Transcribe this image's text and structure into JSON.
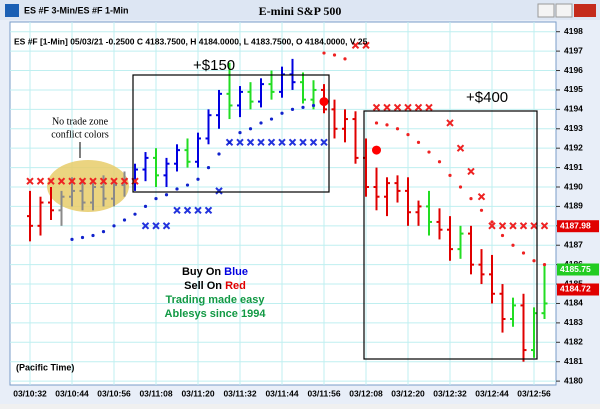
{
  "window_title": "ES #F 3-Min/ES #F 1-Min",
  "chart_data": {
    "type": "ohlc",
    "title": "E-mini S&P 500",
    "subtitle": "ES #F [1-Min] 05/03/21 -0.2500 C 4183.7500, H 4184.0000, L 4183.7500, O 4184.0000, V 25",
    "timezone_note": "(Pacific Time)",
    "categories": [
      "03/10:32",
      null,
      null,
      null,
      "03/10:44",
      null,
      null,
      null,
      "03/10:56",
      null,
      null,
      null,
      "03/11:08",
      null,
      null,
      null,
      "03/11:20",
      null,
      null,
      null,
      "03/11:32",
      null,
      null,
      null,
      "03/11:44",
      null,
      null,
      null,
      "03/11:56",
      null,
      null,
      null,
      "03/12:08",
      null,
      null,
      null,
      "03/12:20",
      null,
      null,
      null,
      "03/12:32",
      null,
      null,
      null,
      "03/12:44",
      null,
      null,
      null,
      "03/12:56",
      null
    ],
    "open": [
      4188.5,
      4188.0,
      4189.2,
      4188.8,
      4189.5,
      4189.8,
      4189.2,
      4190.0,
      4189.4,
      4190.1,
      4190.4,
      4190.9,
      4191.5,
      4190.6,
      4191.2,
      4191.9,
      4191.3,
      4192.5,
      4193.7,
      4194.8,
      4194.2,
      4194.9,
      4194.4,
      4195.3,
      4194.9,
      4195.8,
      4195.4,
      4194.5,
      4195.0,
      4194.0,
      4193.0,
      4193.5,
      4191.5,
      4190.0,
      4189.5,
      4190.2,
      4189.8,
      4188.7,
      4189.0,
      4188.2,
      4187.8,
      4186.8,
      4187.6,
      4186.0,
      4185.5,
      4184.5,
      4183.2,
      4183.9,
      4181.6,
      4183.5
    ],
    "high": [
      4189.8,
      4189.5,
      4190.0,
      4189.8,
      4190.5,
      4190.4,
      4190.2,
      4190.6,
      4190.3,
      4190.8,
      4191.2,
      4191.8,
      4192.0,
      4191.5,
      4192.2,
      4192.5,
      4192.8,
      4194.0,
      4195.0,
      4196.4,
      4195.2,
      4195.4,
      4195.6,
      4196.0,
      4196.2,
      4196.6,
      4195.9,
      4195.5,
      4195.3,
      4194.5,
      4194.0,
      4193.9,
      4192.5,
      4191.0,
      4190.5,
      4190.6,
      4190.5,
      4189.3,
      4189.8,
      4188.9,
      4188.5,
      4188.0,
      4188.0,
      4186.8,
      4186.5,
      4185.0,
      4184.3,
      4184.5,
      4183.8,
      4186.0
    ],
    "low": [
      4187.2,
      4187.5,
      4188.3,
      4188.0,
      4189.0,
      4188.8,
      4188.8,
      4189.0,
      4189.0,
      4189.5,
      4189.8,
      4190.3,
      4190.0,
      4190.0,
      4190.8,
      4191.0,
      4191.0,
      4192.2,
      4193.0,
      4193.5,
      4193.6,
      4194.0,
      4194.1,
      4194.5,
      4194.6,
      4195.0,
      4194.3,
      4194.0,
      4193.8,
      4192.5,
      4192.3,
      4191.2,
      4189.5,
      4188.8,
      4188.5,
      4189.2,
      4188.0,
      4188.0,
      4187.5,
      4187.3,
      4186.2,
      4186.3,
      4185.5,
      4185.0,
      4184.0,
      4182.5,
      4182.8,
      4181.0,
      4181.2,
      4183.2
    ],
    "close": [
      4188.0,
      4189.2,
      4188.8,
      4189.5,
      4189.8,
      4189.2,
      4190.0,
      4189.4,
      4190.1,
      4190.4,
      4190.9,
      4191.5,
      4190.6,
      4191.2,
      4191.9,
      4191.3,
      4192.5,
      4193.7,
      4194.8,
      4194.2,
      4194.9,
      4194.4,
      4195.3,
      4194.9,
      4195.8,
      4195.4,
      4194.5,
      4195.0,
      4194.0,
      4193.0,
      4193.5,
      4191.5,
      4190.0,
      4189.5,
      4190.2,
      4189.8,
      4188.7,
      4189.0,
      4188.2,
      4187.8,
      4186.8,
      4187.6,
      4186.0,
      4185.5,
      4184.5,
      4183.2,
      4183.9,
      4181.6,
      4183.5,
      4184.0
    ],
    "bar_colors": [
      "#e00000",
      "#e00000",
      "#e00000",
      "#8a8a8a",
      "#8a8a8a",
      "#8a8a8a",
      "#8a8a8a",
      "#8a8a8a",
      "#8a8a8a",
      "#8a8a8a",
      "#0000e0",
      "#0000e0",
      "#22dd22",
      "#0000e0",
      "#0000e0",
      "#22dd22",
      "#0000e0",
      "#0000e0",
      "#0000e0",
      "#22dd22",
      "#0000e0",
      "#22dd22",
      "#0000e0",
      "#22dd22",
      "#0000e0",
      "#0000e0",
      "#22dd22",
      "#22dd22",
      "#e00000",
      "#e00000",
      "#e00000",
      "#e00000",
      "#e00000",
      "#e00000",
      "#e00000",
      "#e00000",
      "#e00000",
      "#e00000",
      "#22dd22",
      "#e00000",
      "#e00000",
      "#22dd22",
      "#e00000",
      "#e00000",
      "#e00000",
      "#e00000",
      "#22dd22",
      "#e00000",
      "#22dd22",
      "#22dd22"
    ],
    "markers": [
      {
        "color": "#ee2222",
        "shape": "x",
        "values": [
          4190.3,
          4190.3,
          4190.3,
          4190.3,
          4190.3,
          4190.3,
          4190.3,
          4190.3,
          4190.3,
          4190.3,
          4190.3,
          null,
          null,
          null,
          null,
          null,
          null,
          null,
          null,
          null,
          null,
          null,
          null,
          null,
          null,
          null,
          null,
          null,
          null,
          null,
          null,
          4197.3,
          4197.3,
          4194.1,
          4194.1,
          4194.1,
          4194.1,
          4194.1,
          4194.1,
          null,
          4193.3,
          4192.0,
          4190.8,
          4189.5,
          4188.0,
          4188.0,
          4188.0,
          4188.0,
          4188.0,
          4188.0
        ]
      },
      {
        "color": "#2233dd",
        "shape": "x",
        "values": [
          null,
          null,
          null,
          null,
          null,
          null,
          null,
          null,
          null,
          null,
          null,
          4188.0,
          4188.0,
          4188.0,
          4188.8,
          4188.8,
          4188.8,
          4188.8,
          4189.8,
          4192.3,
          4192.3,
          4192.3,
          4192.3,
          4192.3,
          4192.3,
          4192.3,
          4192.3,
          4192.3,
          4192.3,
          null,
          null,
          null,
          null,
          null,
          null,
          null,
          null,
          null,
          null,
          null,
          null,
          null,
          null,
          null,
          null,
          null,
          null,
          null,
          null,
          null
        ]
      },
      {
        "color": "#1122cc",
        "shape": "dot",
        "values": [
          null,
          null,
          null,
          null,
          4187.3,
          4187.4,
          4187.5,
          4187.7,
          4188.0,
          4188.3,
          4188.6,
          4189.0,
          4189.4,
          4189.6,
          4189.9,
          4190.1,
          4190.4,
          4191.0,
          4191.7,
          4192.3,
          4192.8,
          4193.0,
          4193.3,
          4193.5,
          4193.8,
          4194.0,
          4194.1,
          4194.2,
          null,
          null,
          null,
          null,
          null,
          null,
          null,
          null,
          null,
          null,
          null,
          null,
          null,
          null,
          null,
          null,
          null,
          null,
          null,
          null,
          null,
          null
        ]
      },
      {
        "color": "#ee2222",
        "shape": "dot",
        "values": [
          null,
          null,
          null,
          null,
          null,
          null,
          null,
          null,
          null,
          null,
          null,
          null,
          null,
          null,
          null,
          null,
          null,
          null,
          null,
          null,
          null,
          null,
          null,
          null,
          null,
          null,
          null,
          null,
          4196.9,
          4196.8,
          4196.6,
          null,
          null,
          4193.3,
          4193.2,
          4193.0,
          4192.7,
          4192.3,
          4191.8,
          4191.3,
          4190.6,
          4190.0,
          4189.4,
          4188.8,
          4188.2,
          4187.5,
          4187.0,
          4186.6,
          4186.2,
          4186.0
        ]
      },
      {
        "color": "#ff0000",
        "shape": "signal",
        "values": [
          null,
          null,
          null,
          null,
          null,
          null,
          null,
          null,
          null,
          null,
          null,
          null,
          null,
          null,
          null,
          null,
          null,
          null,
          null,
          null,
          null,
          null,
          null,
          null,
          null,
          null,
          null,
          null,
          4194.4,
          null,
          null,
          null,
          null,
          4191.9,
          null,
          null,
          null,
          null,
          null,
          null,
          null,
          null,
          null,
          null,
          null,
          null,
          null,
          null,
          null,
          null
        ]
      }
    ],
    "price_labels": [
      {
        "value": 4187.98,
        "label": "4187.98",
        "color": "#e00000"
      },
      {
        "value": 4185.75,
        "label": "4185.75",
        "color": "#22cc22"
      },
      {
        "value": 4184.72,
        "label": "4184.72",
        "color": "#e00000"
      }
    ],
    "ylim": [
      4179.8,
      4198.5
    ],
    "yticks": [
      4180,
      4181,
      4182,
      4183,
      4184,
      4185,
      4186,
      4187,
      4188,
      4189,
      4190,
      4191,
      4192,
      4193,
      4194,
      4195,
      4196,
      4197,
      4198
    ],
    "grid": true,
    "annotations": {
      "profit_1": "+$150",
      "profit_2": "+$400",
      "note_1": "No trade zone",
      "note_2": "conflict colors"
    },
    "legend_text": {
      "buy": "Buy On ",
      "buy_color": "Blue",
      "sell": "Sell On ",
      "sell_color": "Red",
      "tagline_1": "Trading made easy",
      "tagline_2": "Ablesys since 1994"
    }
  }
}
